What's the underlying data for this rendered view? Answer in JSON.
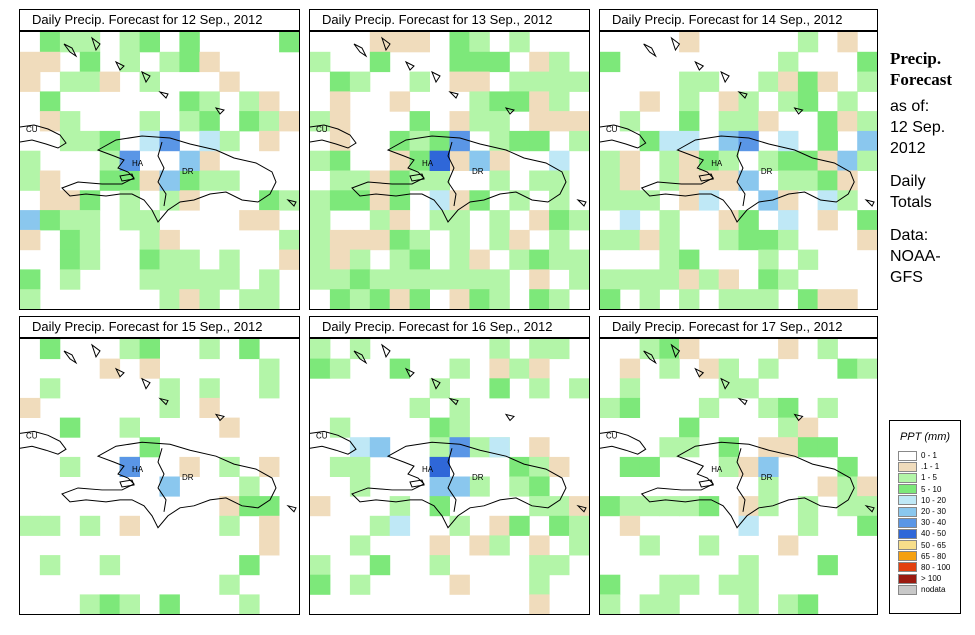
{
  "panels": [
    {
      "title": "Daily Precip. Forecast for  12 Sep., 2012",
      "seed": 11,
      "wet": 0.55
    },
    {
      "title": "Daily Precip. Forecast for  13 Sep., 2012",
      "seed": 23,
      "wet": 0.72
    },
    {
      "title": "Daily Precip. Forecast for  14 Sep., 2012",
      "seed": 37,
      "wet": 0.58
    },
    {
      "title": "Daily Precip. Forecast for  15 Sep., 2012",
      "seed": 41,
      "wet": 0.32
    },
    {
      "title": "Daily Precip. Forecast for  16 Sep., 2012",
      "seed": 53,
      "wet": 0.4
    },
    {
      "title": "Daily Precip. Forecast for  17 Sep., 2012",
      "seed": 67,
      "wet": 0.36
    }
  ],
  "map_labels": {
    "cuba": "CU",
    "haiti": "HA",
    "dominican_republic": "DR"
  },
  "sidebar": {
    "title_line1": "Precip.",
    "title_line2": "Forecast",
    "as_of": "as of:",
    "date_line1": "12 Sep.",
    "date_line2": "2012",
    "totals_line1": "Daily",
    "totals_line2": "Totals",
    "data_line1": "Data:",
    "data_line2": "NOAA-",
    "data_line3": "GFS"
  },
  "legend": {
    "title": "PPT (mm)",
    "entries": [
      {
        "label": "0 - 1",
        "color": "#ffffff"
      },
      {
        "label": ".1 - 1",
        "color": "#f0dcbc"
      },
      {
        "label": "1 - 5",
        "color": "#b3f5a8"
      },
      {
        "label": "5 - 10",
        "color": "#7de87a"
      },
      {
        "label": "10 - 20",
        "color": "#bfe8f6"
      },
      {
        "label": "20 - 30",
        "color": "#8ac7ee"
      },
      {
        "label": "30 - 40",
        "color": "#5a96e6"
      },
      {
        "label": "40 - 50",
        "color": "#2f67d8"
      },
      {
        "label": "50 - 65",
        "color": "#f7de8a"
      },
      {
        "label": "65 - 80",
        "color": "#f5a010"
      },
      {
        "label": "80 - 100",
        "color": "#e24010"
      },
      {
        "label": "> 100",
        "color": "#9a1a10"
      },
      {
        "label": "nodata",
        "color": "#c8c8c8"
      }
    ]
  }
}
